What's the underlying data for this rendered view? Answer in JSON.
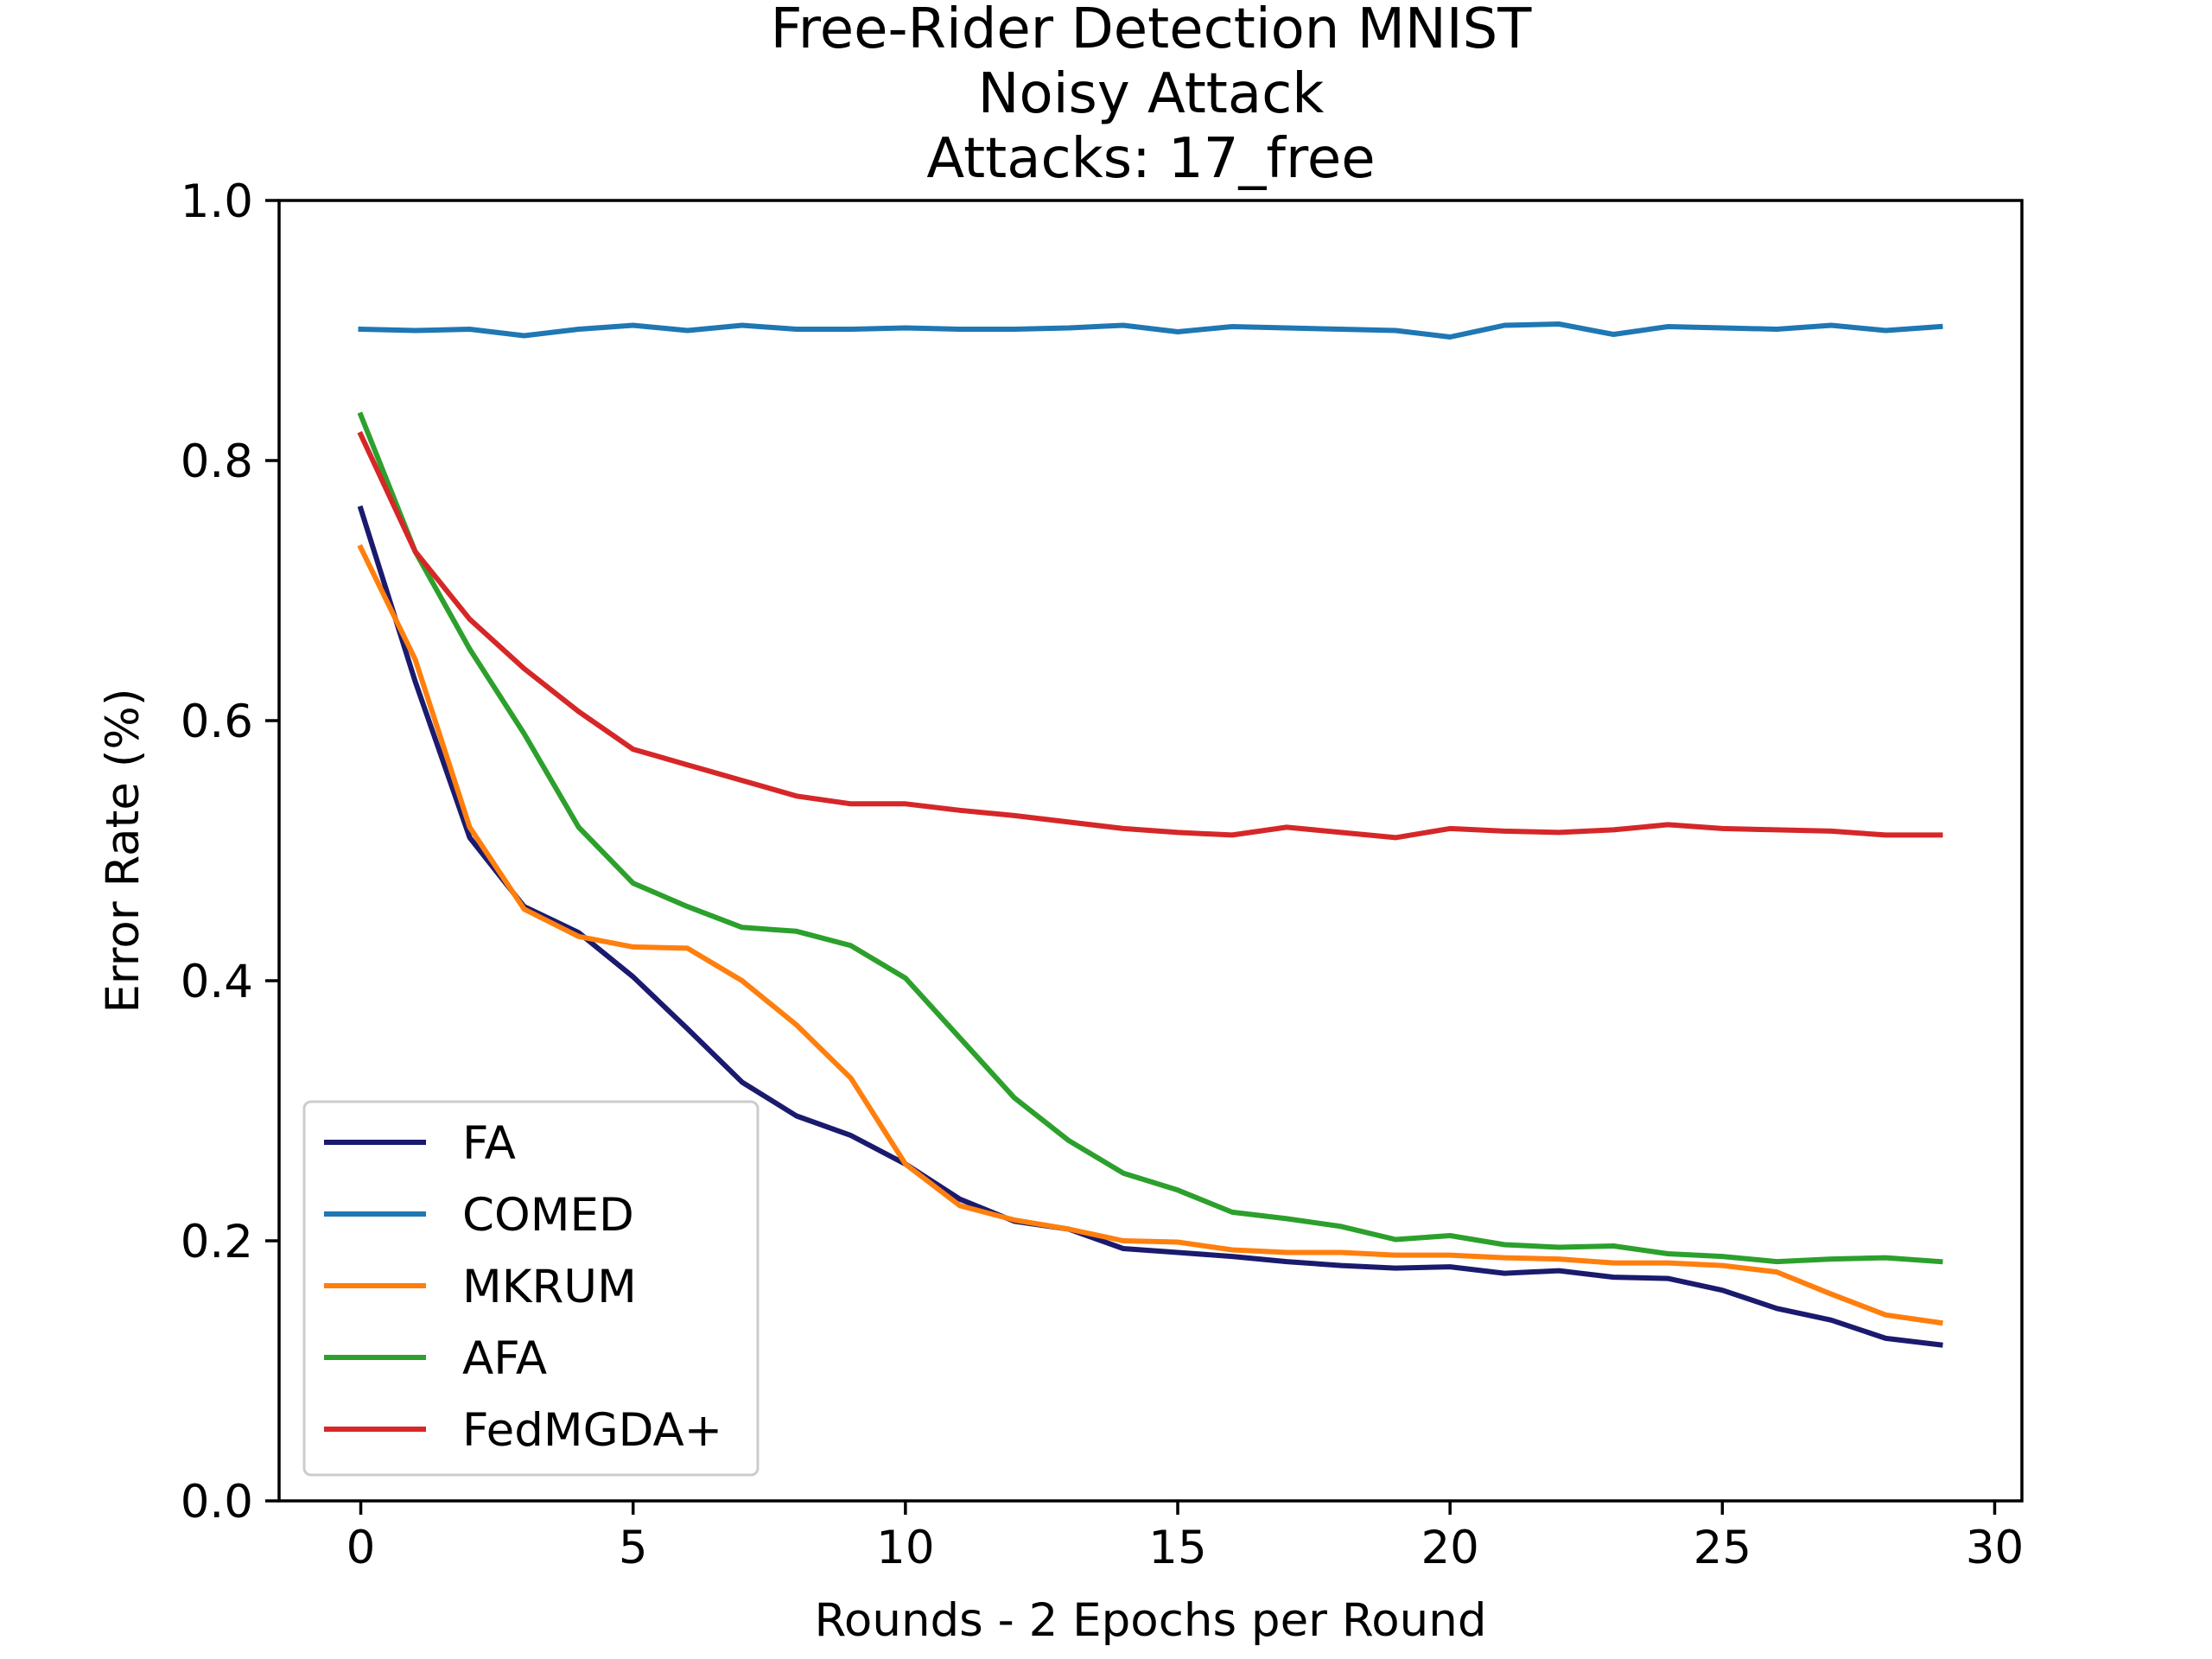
{
  "chart_data": {
    "type": "line",
    "title": [
      "Free-Rider Detection MNIST",
      "Noisy Attack",
      "Attacks: 17_free"
    ],
    "xlabel": "Rounds - 2 Epochs per Round",
    "ylabel": "Error Rate (%)",
    "xlim": [
      -1.5,
      30.5
    ],
    "ylim": [
      0.0,
      1.0
    ],
    "xticks": [
      0,
      5,
      10,
      15,
      20,
      25,
      30
    ],
    "xtick_labels": [
      "0",
      "5",
      "10",
      "15",
      "20",
      "25",
      "30"
    ],
    "yticks": [
      0.0,
      0.2,
      0.4,
      0.6,
      0.8,
      1.0
    ],
    "ytick_labels": [
      "0.0",
      "0.2",
      "0.4",
      "0.6",
      "0.8",
      "1.0"
    ],
    "grid": false,
    "legend_position": "lower-left",
    "x": [
      0,
      1,
      2,
      3,
      4,
      5,
      6,
      7,
      8,
      9,
      10,
      11,
      12,
      13,
      14,
      15,
      16,
      17,
      18,
      19,
      20,
      21,
      22,
      23,
      24,
      25,
      26,
      27,
      28,
      29
    ],
    "series": [
      {
        "name": "FA",
        "color": "#1a1a6e",
        "values": [
          0.763,
          0.63,
          0.51,
          0.457,
          0.437,
          0.403,
          0.363,
          0.322,
          0.296,
          0.281,
          0.259,
          0.232,
          0.215,
          0.209,
          0.194,
          0.191,
          0.188,
          0.184,
          0.181,
          0.179,
          0.18,
          0.175,
          0.177,
          0.172,
          0.171,
          0.162,
          0.148,
          0.139,
          0.125,
          0.12
        ]
      },
      {
        "name": "COMED",
        "color": "#1f77b4",
        "values": [
          0.901,
          0.9,
          0.901,
          0.896,
          0.901,
          0.904,
          0.9,
          0.904,
          0.901,
          0.901,
          0.902,
          0.901,
          0.901,
          0.902,
          0.904,
          0.899,
          0.903,
          0.902,
          0.901,
          0.9,
          0.895,
          0.904,
          0.905,
          0.897,
          0.903,
          0.902,
          0.901,
          0.904,
          0.9,
          0.903
        ]
      },
      {
        "name": "MKRUM",
        "color": "#ff7f0e",
        "values": [
          0.733,
          0.647,
          0.518,
          0.455,
          0.434,
          0.426,
          0.425,
          0.4,
          0.366,
          0.325,
          0.259,
          0.227,
          0.216,
          0.209,
          0.2,
          0.199,
          0.193,
          0.191,
          0.191,
          0.189,
          0.189,
          0.187,
          0.186,
          0.183,
          0.183,
          0.181,
          0.176,
          0.159,
          0.143,
          0.137
        ]
      },
      {
        "name": "AFA",
        "color": "#2ca02c",
        "values": [
          0.835,
          0.73,
          0.655,
          0.59,
          0.518,
          0.475,
          0.457,
          0.441,
          0.438,
          0.427,
          0.402,
          0.356,
          0.31,
          0.277,
          0.252,
          0.239,
          0.222,
          0.217,
          0.211,
          0.201,
          0.204,
          0.197,
          0.195,
          0.196,
          0.19,
          0.188,
          0.184,
          0.186,
          0.187,
          0.184
        ]
      },
      {
        "name": "FedMGDA+",
        "color": "#d62728",
        "values": [
          0.82,
          0.73,
          0.678,
          0.64,
          0.607,
          0.578,
          0.566,
          0.554,
          0.542,
          0.536,
          0.536,
          0.531,
          0.527,
          0.522,
          0.517,
          0.514,
          0.512,
          0.518,
          0.514,
          0.51,
          0.517,
          0.515,
          0.514,
          0.516,
          0.52,
          0.517,
          0.516,
          0.515,
          0.512,
          0.512
        ]
      }
    ]
  }
}
